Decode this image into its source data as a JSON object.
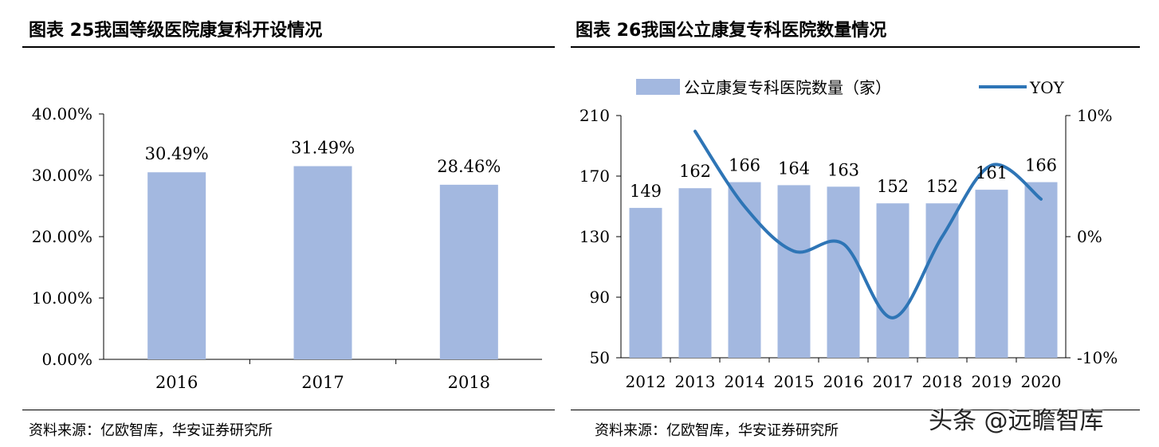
{
  "left": {
    "title": "图表 25我国等级医院康复科开设情况",
    "source": "资料来源：亿欧智库，华安证券研究所"
  },
  "right": {
    "title": "图表 26我国公立康复专科医院数量情况",
    "source": "资料来源：亿欧智库，华安证券研究所"
  },
  "watermark": "头条 @远瞻智库",
  "colors": {
    "bar": "#a3b8e0",
    "line": "#2e75b6",
    "axis": "#000000"
  },
  "chart_data": [
    {
      "type": "bar",
      "categories": [
        "2016",
        "2017",
        "2018"
      ],
      "values": [
        30.49,
        31.49,
        28.46
      ],
      "data_labels": [
        "30.49%",
        "31.49%",
        "28.46%"
      ],
      "ylim": [
        0,
        40
      ],
      "yticks": [
        "0.00%",
        "10.00%",
        "20.00%",
        "30.00%",
        "40.00%"
      ],
      "grid": false,
      "legend": "none"
    },
    {
      "type": "bar+line",
      "categories": [
        "2012",
        "2013",
        "2014",
        "2015",
        "2016",
        "2017",
        "2018",
        "2019",
        "2020"
      ],
      "series": [
        {
          "name": "公立康复专科医院数量（家）",
          "type": "bar",
          "axis": "left",
          "values": [
            149,
            162,
            166,
            164,
            163,
            152,
            152,
            161,
            166
          ],
          "data_labels": [
            "149",
            "162",
            "166",
            "164",
            "163",
            "152",
            "152",
            "161",
            "166"
          ]
        },
        {
          "name": "YOY",
          "type": "line",
          "axis": "right",
          "values": [
            null,
            8.7,
            2.5,
            -1.2,
            -0.6,
            -6.7,
            0.0,
            5.9,
            3.1
          ]
        }
      ],
      "ylim_left": [
        50,
        210
      ],
      "yticks_left": [
        "50",
        "90",
        "130",
        "170",
        "210"
      ],
      "ylim_right": [
        -10,
        10
      ],
      "yticks_right": [
        "-10%",
        "0%",
        "10%"
      ],
      "grid": false,
      "legend": "top"
    }
  ]
}
